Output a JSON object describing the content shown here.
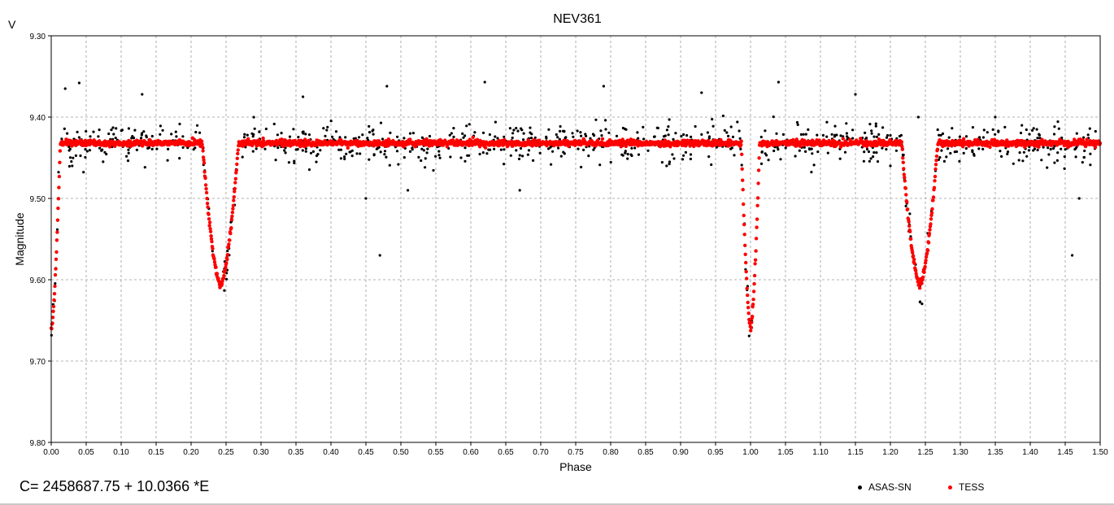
{
  "chart_data": {
    "type": "scatter",
    "title": "NEV361",
    "xlabel": "Phase",
    "ylabel": "Magnitude",
    "y_unit_label": "V",
    "xlim": [
      0.0,
      1.5
    ],
    "ylim": [
      9.3,
      9.8
    ],
    "y_inverted": true,
    "grid": true,
    "legend_placement": "bottom-right",
    "x_ticks": [
      "0.00",
      "0.05",
      "0.10",
      "0.15",
      "0.20",
      "0.25",
      "0.30",
      "0.35",
      "0.40",
      "0.45",
      "0.50",
      "0.55",
      "0.60",
      "0.65",
      "0.70",
      "0.75",
      "0.80",
      "0.85",
      "0.90",
      "0.95",
      "1.00",
      "1.05",
      "1.10",
      "1.15",
      "1.20",
      "1.25",
      "1.30",
      "1.35",
      "1.40",
      "1.45",
      "1.50"
    ],
    "y_ticks": [
      "9.30",
      "9.40",
      "9.50",
      "9.60",
      "9.70",
      "9.80"
    ],
    "series": [
      {
        "name": "ASAS-SN",
        "color": "#000000",
        "baseline_mag": 9.432,
        "scatter_mag": 0.012,
        "outliers": [
          [
            0.04,
            9.358
          ],
          [
            0.02,
            9.365
          ],
          [
            0.13,
            9.372
          ],
          [
            0.48,
            9.362
          ],
          [
            0.62,
            9.357
          ],
          [
            0.79,
            9.362
          ],
          [
            1.04,
            9.357
          ],
          [
            1.15,
            9.372
          ],
          [
            0.47,
            9.57
          ],
          [
            1.46,
            9.57
          ],
          [
            0.45,
            9.5
          ],
          [
            1.47,
            9.5
          ],
          [
            0.51,
            9.49
          ],
          [
            0.67,
            9.49
          ],
          [
            0.03,
            9.46
          ],
          [
            1.2,
            9.46
          ],
          [
            0.88,
            9.46
          ],
          [
            0.36,
            9.375
          ],
          [
            1.24,
            9.4
          ],
          [
            0.93,
            9.37
          ],
          [
            1.35,
            9.4
          ]
        ]
      },
      {
        "name": "TESS",
        "color": "#ff0000",
        "baseline_mag": 9.432
      }
    ],
    "eclipses": [
      {
        "phase": 0.0,
        "depth_mag": 9.66,
        "half_width": 0.013
      },
      {
        "phase": 0.242,
        "depth_mag": 9.607,
        "half_width": 0.026
      },
      {
        "phase": 1.0,
        "depth_mag": 9.66,
        "half_width": 0.013
      },
      {
        "phase": 1.242,
        "depth_mag": 9.607,
        "half_width": 0.026
      }
    ]
  },
  "footer": {
    "formula": "C= 2458687.75 + 10.0366 *E"
  }
}
